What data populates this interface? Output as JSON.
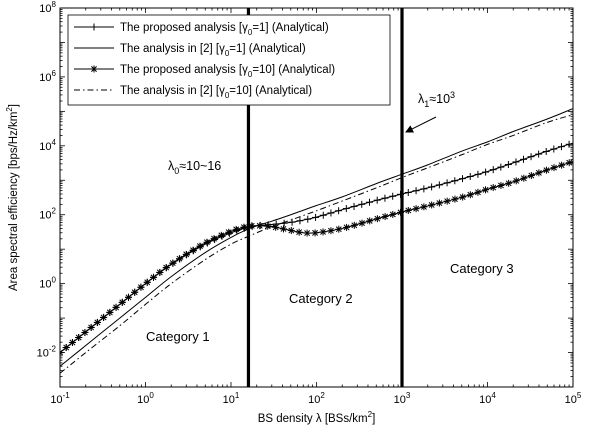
{
  "chart_data": {
    "type": "line",
    "xlabel": "BS density λ  [BSs/km²]",
    "ylabel": "Area spectral efficiency [bps/Hz/km²]",
    "x_scale": "log",
    "y_scale": "log",
    "xlim": [
      0.1,
      100000
    ],
    "ylim": [
      0.001,
      100000000
    ],
    "x_ticks": [
      0.1,
      1,
      10,
      100,
      1000,
      10000,
      100000
    ],
    "x_tick_labels": [
      {
        "base": "10",
        "exp": "-1"
      },
      {
        "base": "10",
        "exp": "0"
      },
      {
        "base": "10",
        "exp": "1"
      },
      {
        "base": "10",
        "exp": "2"
      },
      {
        "base": "10",
        "exp": "3"
      },
      {
        "base": "10",
        "exp": "4"
      },
      {
        "base": "10",
        "exp": "5"
      }
    ],
    "y_ticks": [
      0.01,
      1,
      100,
      10000,
      1000000,
      100000000
    ],
    "y_tick_labels": [
      {
        "base": "10",
        "exp": "-2"
      },
      {
        "base": "10",
        "exp": "0"
      },
      {
        "base": "10",
        "exp": "2"
      },
      {
        "base": "10",
        "exp": "4"
      },
      {
        "base": "10",
        "exp": "6"
      },
      {
        "base": "10",
        "exp": "8"
      }
    ],
    "grid": false,
    "legend_position": "top-left",
    "x": [
      0.1,
      0.2,
      0.5,
      1,
      2,
      5,
      10,
      15,
      20,
      30,
      50,
      70,
      100,
      200,
      500,
      1000,
      2000,
      5000,
      10000,
      20000,
      50000,
      100000
    ],
    "series": [
      {
        "name": "The proposed analysis [γ₀=1] (Analytical)",
        "style": "solid",
        "marker": "plus",
        "color": "#000000",
        "values": [
          0.01,
          0.04,
          0.25,
          1.0,
          3.6,
          14,
          30,
          42,
          48,
          52,
          60,
          70,
          85,
          140,
          260,
          400,
          600,
          1100,
          1800,
          3200,
          7000,
          12000
        ]
      },
      {
        "name": "The analysis in [2] [γ₀=1] (Analytical)",
        "style": "solid",
        "marker": "none",
        "color": "#000000",
        "values": [
          0.004,
          0.016,
          0.1,
          0.4,
          1.6,
          8,
          22,
          36,
          48,
          65,
          100,
          135,
          185,
          330,
          800,
          1500,
          2800,
          7000,
          13000,
          26000,
          60000,
          120000
        ]
      },
      {
        "name": "The proposed analysis [γ₀=10] (Analytical)",
        "style": "solid",
        "marker": "asterisk",
        "color": "#000000",
        "values": [
          0.01,
          0.04,
          0.25,
          1.0,
          3.7,
          15,
          33,
          45,
          48,
          45,
          35,
          30,
          30,
          40,
          75,
          120,
          180,
          320,
          550,
          900,
          2000,
          3500
        ]
      },
      {
        "name": "The analysis in [2] [γ₀=10] (Analytical)",
        "style": "dashdot",
        "marker": "none",
        "color": "#000000",
        "values": [
          0.0025,
          0.01,
          0.06,
          0.25,
          1.0,
          5,
          14,
          22,
          30,
          45,
          70,
          95,
          130,
          250,
          600,
          1200,
          2300,
          5500,
          11000,
          20000,
          48000,
          80000
        ]
      }
    ],
    "vertical_lines": [
      {
        "x": 16,
        "label": "λ0 threshold"
      },
      {
        "x": 1000,
        "label": "λ1 threshold"
      }
    ],
    "annotations": {
      "lambda0": {
        "symbol": "λ",
        "sub": "0",
        "rest": "≈10~16"
      },
      "lambda1": {
        "symbol": "λ",
        "sub": "1",
        "rest": "≈10",
        "sup": "3"
      },
      "category1": "Category 1",
      "category2": "Category 2",
      "category3": "Category 3"
    }
  },
  "legend": [
    {
      "prefix": "The proposed analysis [γ",
      "sub": "0",
      "suffix": "=1] (Analytical)"
    },
    {
      "prefix": "The analysis in [2] [γ",
      "sub": "0",
      "suffix": "=1] (Analytical)"
    },
    {
      "prefix": "The proposed analysis [γ",
      "sub": "0",
      "suffix": "=10] (Analytical)"
    },
    {
      "prefix": "The analysis in [2] [γ",
      "sub": "0",
      "suffix": "=10] (Analytical)"
    }
  ],
  "axis_title_parts": {
    "x_prefix": "BS density λ  [BSs/km",
    "x_sup": "2",
    "x_suffix": "]",
    "y_prefix": "Area spectral efficiency [bps/Hz/km",
    "y_sup": "2",
    "y_suffix": "]"
  }
}
